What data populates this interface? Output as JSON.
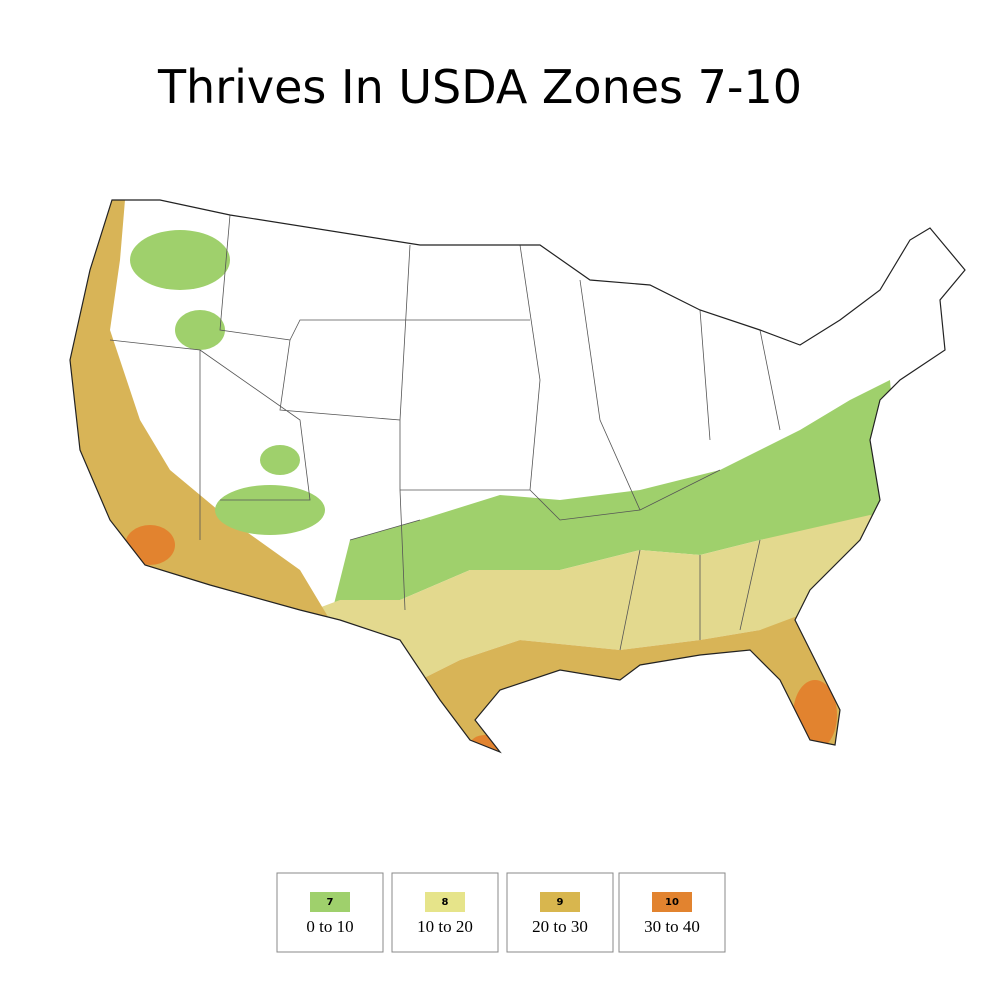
{
  "title": "Thrives In USDA Zones 7-10",
  "legend": [
    {
      "zone": "7",
      "range": "0 to 10",
      "color": "#9fd06c"
    },
    {
      "zone": "8",
      "range": "10 to 20",
      "color": "#e6e48a"
    },
    {
      "zone": "9",
      "range": "20 to 30",
      "color": "#d8b64e"
    },
    {
      "zone": "10",
      "range": "30 to 40",
      "color": "#e2832f"
    }
  ]
}
